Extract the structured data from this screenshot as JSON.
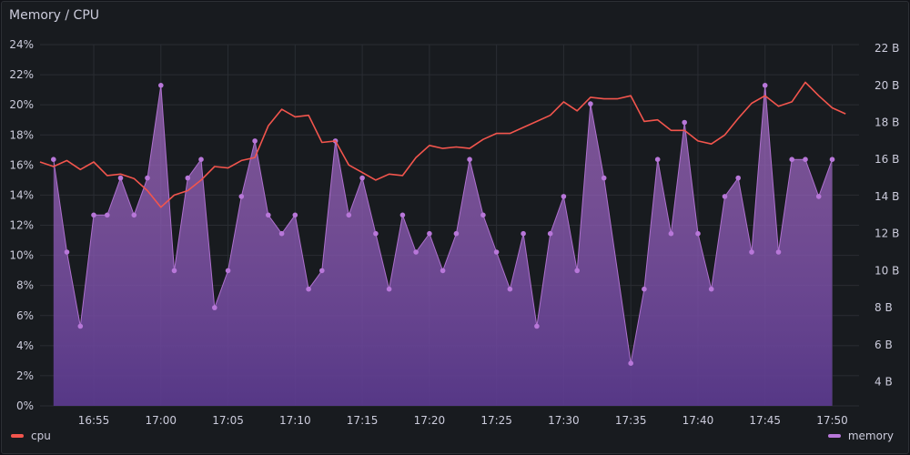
{
  "panel": {
    "title": "Memory / CPU"
  },
  "chart_data": {
    "type": "line",
    "title": "Memory / CPU",
    "xlabel": "",
    "x_ticks": [
      "16:55",
      "17:00",
      "17:05",
      "17:10",
      "17:15",
      "17:20",
      "17:25",
      "17:30",
      "17:35",
      "17:40",
      "17:45",
      "17:50"
    ],
    "x_range": [
      "16:51",
      "17:52"
    ],
    "y_left": {
      "ticks": [
        "0%",
        "2%",
        "4%",
        "6%",
        "8%",
        "10%",
        "12%",
        "14%",
        "16%",
        "18%",
        "20%",
        "22%",
        "24%"
      ],
      "range": [
        0,
        24
      ]
    },
    "y_right": {
      "ticks": [
        "4 B",
        "6 B",
        "8 B",
        "10 B",
        "12 B",
        "14 B",
        "16 B",
        "18 B",
        "20 B",
        "22 B"
      ],
      "range": [
        2.7,
        22.2
      ]
    },
    "grid": true,
    "legend_position": "bottom",
    "series": [
      {
        "name": "cpu",
        "axis": "left",
        "style": "line",
        "color": "#f2554d",
        "points": [
          [
            "16:51",
            16.2
          ],
          [
            "16:52",
            15.9
          ],
          [
            "16:53",
            16.3
          ],
          [
            "16:54",
            15.7
          ],
          [
            "16:55",
            16.2
          ],
          [
            "16:56",
            15.3
          ],
          [
            "16:57",
            15.4
          ],
          [
            "16:58",
            15.1
          ],
          [
            "16:59",
            14.3
          ],
          [
            "17:00",
            13.2
          ],
          [
            "17:01",
            14.0
          ],
          [
            "17:02",
            14.3
          ],
          [
            "17:03",
            15.0
          ],
          [
            "17:04",
            15.9
          ],
          [
            "17:05",
            15.8
          ],
          [
            "17:06",
            16.3
          ],
          [
            "17:07",
            16.5
          ],
          [
            "17:08",
            18.6
          ],
          [
            "17:09",
            19.7
          ],
          [
            "17:10",
            19.2
          ],
          [
            "17:11",
            19.3
          ],
          [
            "17:12",
            17.5
          ],
          [
            "17:13",
            17.6
          ],
          [
            "17:14",
            16.0
          ],
          [
            "17:15",
            15.5
          ],
          [
            "17:16",
            15.0
          ],
          [
            "17:17",
            15.4
          ],
          [
            "17:18",
            15.3
          ],
          [
            "17:19",
            16.5
          ],
          [
            "17:20",
            17.3
          ],
          [
            "17:21",
            17.1
          ],
          [
            "17:22",
            17.2
          ],
          [
            "17:23",
            17.1
          ],
          [
            "17:24",
            17.7
          ],
          [
            "17:25",
            18.1
          ],
          [
            "17:26",
            18.1
          ],
          [
            "17:27",
            18.5
          ],
          [
            "17:28",
            18.9
          ],
          [
            "17:29",
            19.3
          ],
          [
            "17:30",
            20.2
          ],
          [
            "17:31",
            19.6
          ],
          [
            "17:32",
            20.5
          ],
          [
            "17:33",
            20.4
          ],
          [
            "17:34",
            20.4
          ],
          [
            "17:35",
            20.6
          ],
          [
            "17:36",
            18.9
          ],
          [
            "17:37",
            19.0
          ],
          [
            "17:38",
            18.3
          ],
          [
            "17:39",
            18.3
          ],
          [
            "17:40",
            17.6
          ],
          [
            "17:41",
            17.4
          ],
          [
            "17:42",
            18.0
          ],
          [
            "17:43",
            19.1
          ],
          [
            "17:44",
            20.1
          ],
          [
            "17:45",
            20.6
          ],
          [
            "17:46",
            19.9
          ],
          [
            "17:47",
            20.2
          ],
          [
            "17:48",
            21.5
          ],
          [
            "17:49",
            20.6
          ],
          [
            "17:50",
            19.8
          ],
          [
            "17:51",
            19.4
          ]
        ]
      },
      {
        "name": "memory",
        "axis": "right",
        "style": "area",
        "color": "#b877d9",
        "points": [
          [
            "16:52",
            16
          ],
          [
            "16:53",
            11
          ],
          [
            "16:54",
            7
          ],
          [
            "16:55",
            13
          ],
          [
            "16:56",
            13
          ],
          [
            "16:57",
            15
          ],
          [
            "16:58",
            13
          ],
          [
            "16:59",
            15
          ],
          [
            "17:00",
            20
          ],
          [
            "17:01",
            10
          ],
          [
            "17:02",
            15
          ],
          [
            "17:03",
            16
          ],
          [
            "17:04",
            8
          ],
          [
            "17:05",
            10
          ],
          [
            "17:06",
            14
          ],
          [
            "17:07",
            17
          ],
          [
            "17:08",
            13
          ],
          [
            "17:09",
            12
          ],
          [
            "17:10",
            13
          ],
          [
            "17:11",
            9
          ],
          [
            "17:12",
            10
          ],
          [
            "17:13",
            17
          ],
          [
            "17:14",
            13
          ],
          [
            "17:15",
            15
          ],
          [
            "17:16",
            12
          ],
          [
            "17:17",
            9
          ],
          [
            "17:18",
            13
          ],
          [
            "17:19",
            11
          ],
          [
            "17:20",
            12
          ],
          [
            "17:21",
            10
          ],
          [
            "17:22",
            12
          ],
          [
            "17:23",
            16
          ],
          [
            "17:24",
            13
          ],
          [
            "17:25",
            11
          ],
          [
            "17:26",
            9
          ],
          [
            "17:27",
            12
          ],
          [
            "17:28",
            7
          ],
          [
            "17:29",
            12
          ],
          [
            "17:30",
            14
          ],
          [
            "17:31",
            10
          ],
          [
            "17:32",
            19
          ],
          [
            "17:33",
            15
          ],
          [
            "17:35",
            5
          ],
          [
            "17:36",
            9
          ],
          [
            "17:37",
            16
          ],
          [
            "17:38",
            12
          ],
          [
            "17:39",
            18
          ],
          [
            "17:40",
            12
          ],
          [
            "17:41",
            9
          ],
          [
            "17:42",
            14
          ],
          [
            "17:43",
            15
          ],
          [
            "17:44",
            11
          ],
          [
            "17:45",
            20
          ],
          [
            "17:46",
            11
          ],
          [
            "17:47",
            16
          ],
          [
            "17:48",
            16
          ],
          [
            "17:49",
            14
          ],
          [
            "17:50",
            16
          ]
        ]
      }
    ]
  },
  "legend": {
    "cpu_label": "cpu",
    "memory_label": "memory",
    "cpu_color": "#f2554d",
    "memory_color": "#b877d9"
  }
}
